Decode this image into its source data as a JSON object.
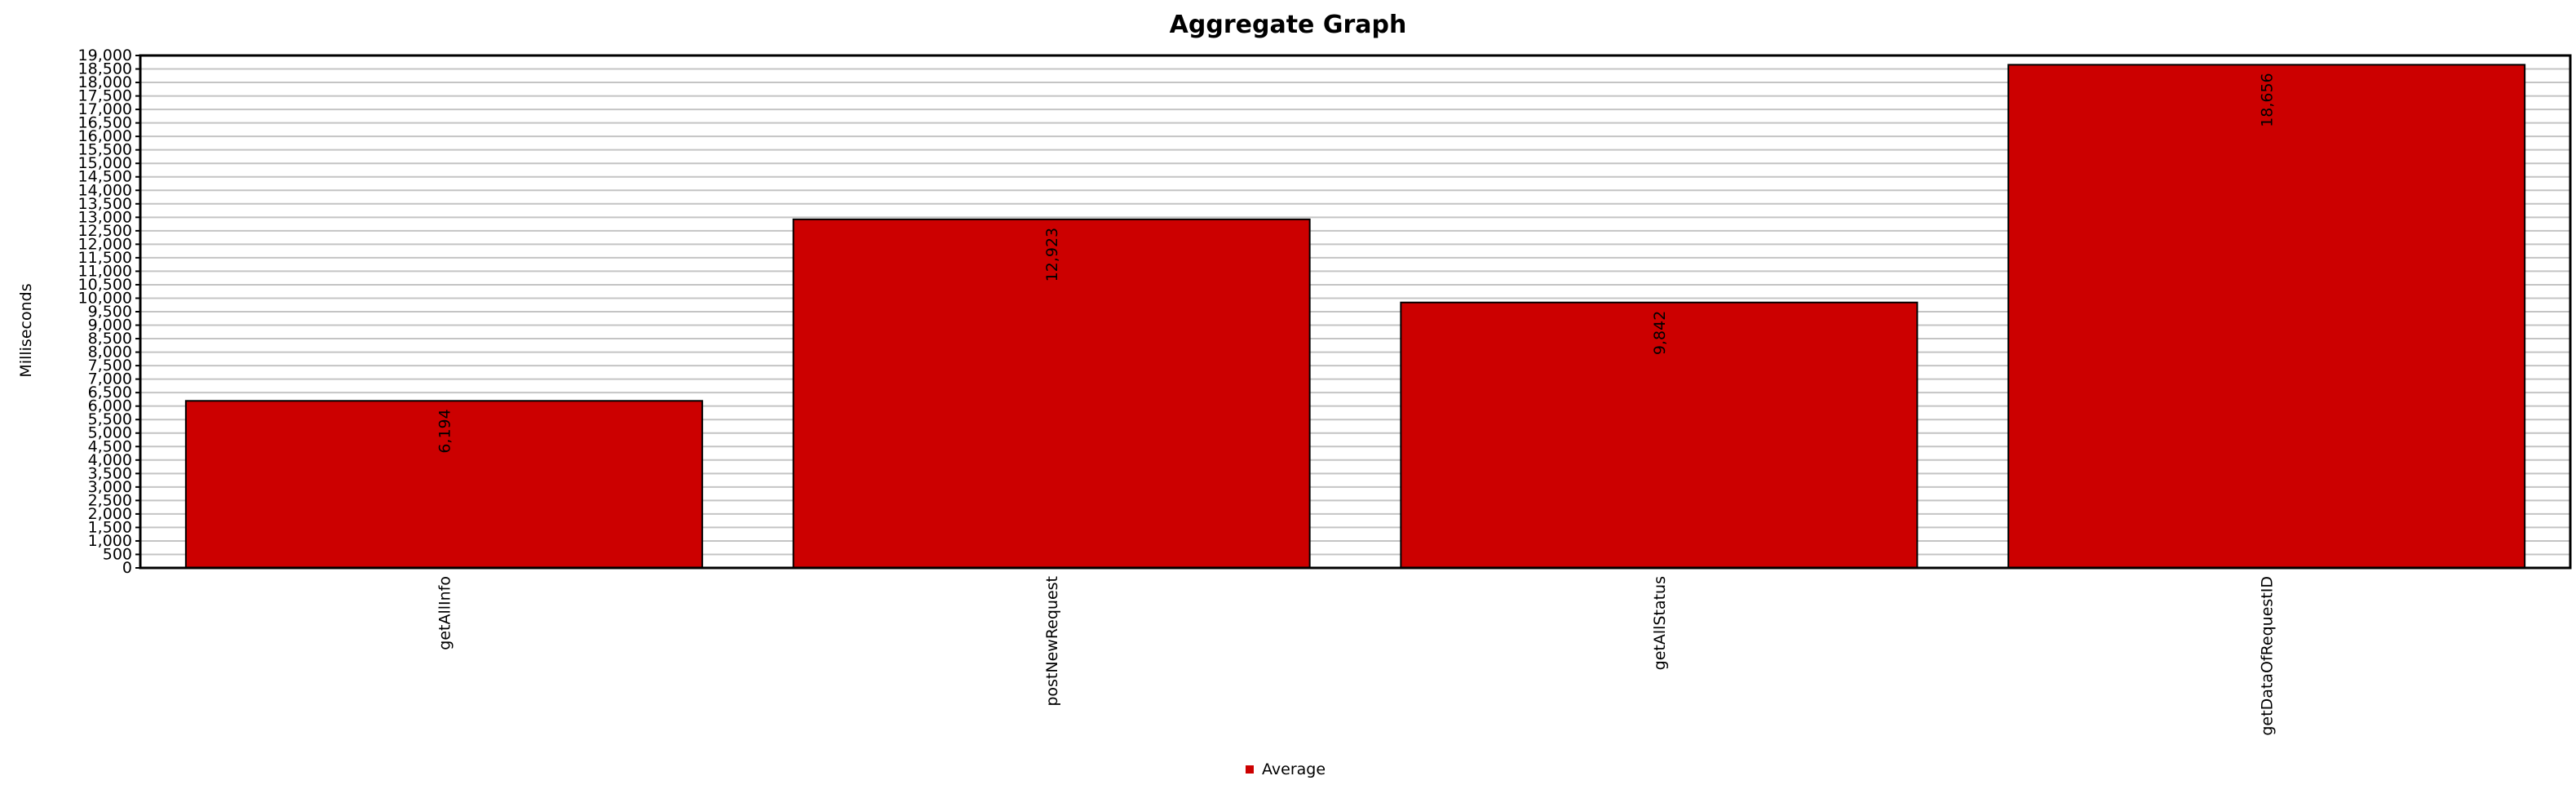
{
  "chart_data": {
    "type": "bar",
    "title": "Aggregate Graph",
    "xlabel": "",
    "ylabel": "Milliseconds",
    "ylim": [
      0,
      19000
    ],
    "ytick_step": 500,
    "grid": true,
    "legend_position": "bottom-center",
    "categories": [
      "getAllInfo",
      "postNewRequest",
      "getAllStatus",
      "getDataOfRequestID"
    ],
    "series": [
      {
        "name": "Average",
        "color": "#cc0000",
        "values": [
          6194,
          12923,
          9842,
          18656
        ],
        "labels": [
          "6,194",
          "12,923",
          "9,842",
          "18,656"
        ]
      }
    ]
  }
}
